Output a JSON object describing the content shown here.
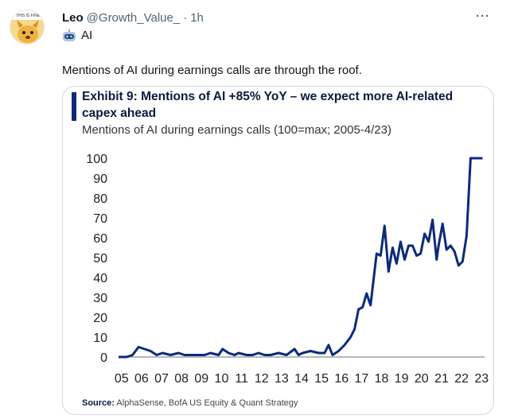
{
  "tweet": {
    "author_name": "Leo",
    "author_handle": "@Growth_Value_",
    "separator": "·",
    "time": "1h",
    "affiliation_label": "AI",
    "text": "Mentions of AI during earnings calls are through the roof.",
    "more_label": "···",
    "avatar_text": "THIS IS FINE"
  },
  "media": {
    "title": "Exhibit 9: Mentions of AI +85% YoY – we expect more AI-related capex ahead",
    "subtitle": "Mentions of AI during earnings calls (100=max; 2005-4/23)",
    "source_label": "Source:",
    "source_text": "AlphaSense, BofA US Equity & Quant Strategy",
    "accent_color": "#0b2a7a",
    "line_color": "#0b2a7a"
  },
  "chart_data": {
    "type": "line",
    "title": "Exhibit 9: Mentions of AI +85% YoY – we expect more AI-related capex ahead",
    "subtitle": "Mentions of AI during earnings calls (100=max; 2005-4/23)",
    "xlabel": "",
    "ylabel": "",
    "ylim": [
      0,
      100
    ],
    "yticks": [
      0,
      10,
      20,
      30,
      40,
      50,
      60,
      70,
      80,
      90,
      100
    ],
    "xticks": [
      "05",
      "06",
      "07",
      "08",
      "09",
      "10",
      "11",
      "12",
      "13",
      "14",
      "15",
      "16",
      "17",
      "18",
      "19",
      "20",
      "21",
      "22",
      "23"
    ],
    "xlim": [
      2005,
      2023.3
    ],
    "grid": false,
    "legend": "none",
    "series": [
      {
        "x": [
          2005.0,
          2005.4,
          2005.7,
          2006.0,
          2006.3,
          2006.6,
          2006.9,
          2007.2,
          2007.6,
          2008.0,
          2008.3,
          2008.6,
          2009.0,
          2009.3,
          2009.6,
          2010.0,
          2010.2,
          2010.5,
          2010.8,
          2011.0,
          2011.4,
          2011.7,
          2012.0,
          2012.3,
          2012.6,
          2013.0,
          2013.4,
          2013.8,
          2014.0,
          2014.2,
          2014.6,
          2015.0,
          2015.3,
          2015.5,
          2015.7,
          2016.0,
          2016.3,
          2016.6,
          2016.8,
          2017.0,
          2017.2,
          2017.4,
          2017.6,
          2017.9,
          2018.1,
          2018.3,
          2018.5,
          2018.7,
          2018.9,
          2019.1,
          2019.3,
          2019.5,
          2019.7,
          2019.9,
          2020.1,
          2020.3,
          2020.5,
          2020.7,
          2020.9,
          2021.0,
          2021.2,
          2021.4,
          2021.6,
          2021.8,
          2022.0,
          2022.2,
          2022.4,
          2022.6,
          2022.8,
          2023.0,
          2023.2
        ],
        "y": [
          0,
          0,
          1,
          5,
          4,
          3,
          1,
          2,
          1,
          2,
          1,
          1,
          1,
          1,
          2,
          1,
          4,
          2,
          1,
          2,
          1,
          1,
          2,
          1,
          1,
          2,
          1,
          4,
          1,
          2,
          3,
          2,
          2,
          6,
          1,
          3,
          6,
          10,
          14,
          24,
          25,
          32,
          26,
          52,
          51,
          66,
          43,
          55,
          47,
          58,
          49,
          56,
          56,
          51,
          52,
          62,
          58,
          69,
          49,
          56,
          67,
          54,
          56,
          53,
          46,
          48,
          61,
          100,
          100,
          100,
          100
        ]
      }
    ]
  }
}
